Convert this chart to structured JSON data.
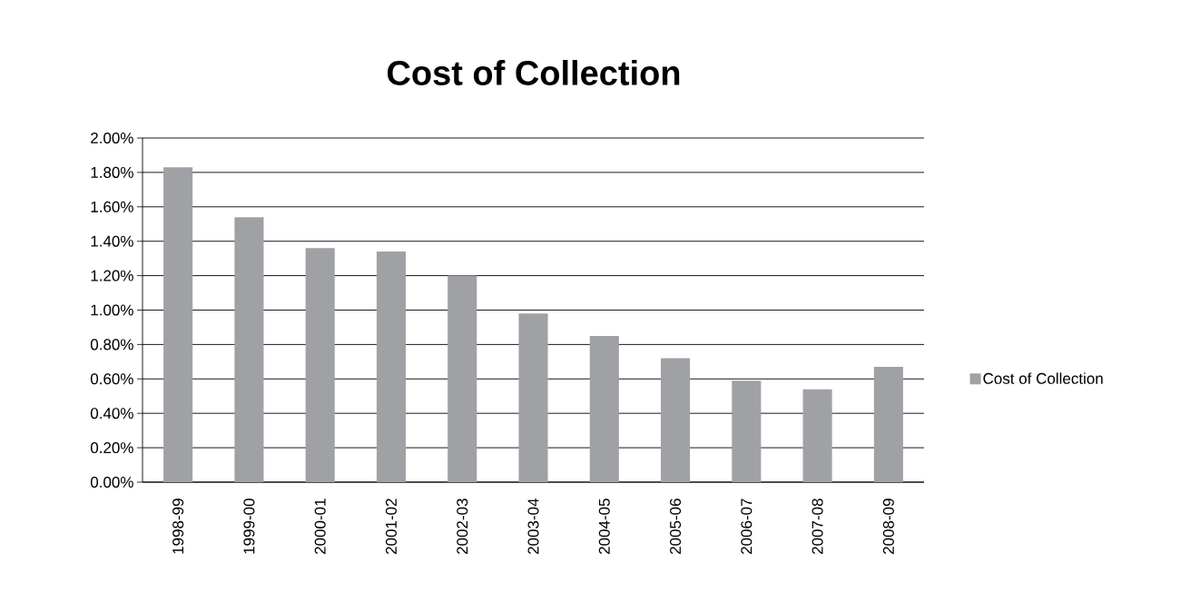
{
  "chart_data": {
    "type": "bar",
    "title": "Cost of Collection",
    "categories": [
      "1998-99",
      "1999-00",
      "2000-01",
      "2001-02",
      "2002-03",
      "2003-04",
      "2004-05",
      "2005-06",
      "2006-07",
      "2007-08",
      "2008-09"
    ],
    "series": [
      {
        "name": "Cost of Collection",
        "color": "#a0a1a5",
        "values": [
          1.83,
          1.54,
          1.36,
          1.34,
          1.2,
          0.98,
          0.85,
          0.72,
          0.59,
          0.54,
          0.67
        ]
      }
    ],
    "ylim": [
      0,
      2
    ],
    "yticks": [
      {
        "value": 0,
        "label": "0.00%"
      },
      {
        "value": 0.2,
        "label": "0.20%"
      },
      {
        "value": 0.4,
        "label": "0.40%"
      },
      {
        "value": 0.6,
        "label": "0.60%"
      },
      {
        "value": 0.8,
        "label": "0.80%"
      },
      {
        "value": 1.0,
        "label": "1.00%"
      },
      {
        "value": 1.2,
        "label": "1.20%"
      },
      {
        "value": 1.4,
        "label": "1.40%"
      },
      {
        "value": 1.6,
        "label": "1.60%"
      },
      {
        "value": 1.8,
        "label": "1.80%"
      },
      {
        "value": 2.0,
        "label": "2.00%"
      }
    ],
    "grid": "y",
    "legend": "right"
  }
}
